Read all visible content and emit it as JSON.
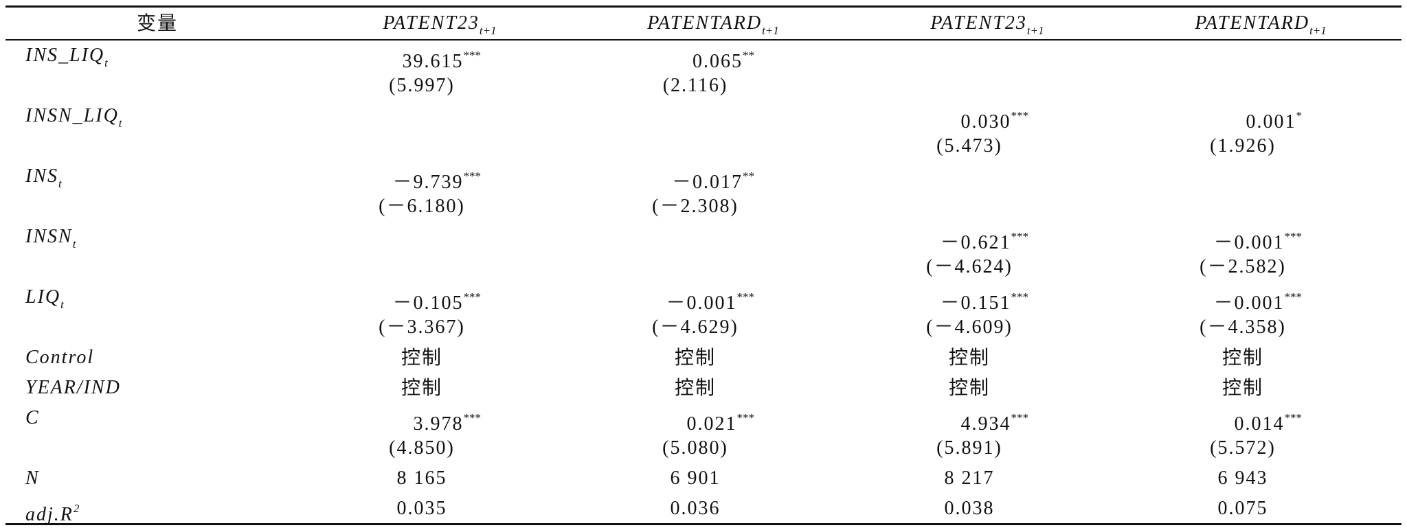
{
  "header": {
    "variable": "变量",
    "columns": [
      {
        "text": "PATENT23",
        "sub": "t+1"
      },
      {
        "text": "PATENTARD",
        "sub": "t+1"
      },
      {
        "text": "PATENT23",
        "sub": "t+1"
      },
      {
        "text": "PATENTARD",
        "sub": "t+1"
      }
    ]
  },
  "rows": [
    {
      "label": {
        "text": "INS_LIQ",
        "sub": "t"
      },
      "cells": [
        {
          "coef": "39.615",
          "stars": "***",
          "t": "(5.997)"
        },
        {
          "coef": "0.065",
          "stars": "**",
          "t": "(2.116)"
        },
        null,
        null
      ]
    },
    {
      "label": {
        "text": "INSN_LIQ",
        "sub": "t"
      },
      "cells": [
        null,
        null,
        {
          "coef": "0.030",
          "stars": "***",
          "t": "(5.473)"
        },
        {
          "coef": "0.001",
          "stars": "*",
          "t": "(1.926)"
        }
      ]
    },
    {
      "label": {
        "text": "INS",
        "sub": "t"
      },
      "cells": [
        {
          "coef": "－9.739",
          "stars": "***",
          "t": "(－6.180)"
        },
        {
          "coef": "－0.017",
          "stars": "**",
          "t": "(－2.308)"
        },
        null,
        null
      ]
    },
    {
      "label": {
        "text": "INSN",
        "sub": "t"
      },
      "cells": [
        null,
        null,
        {
          "coef": "－0.621",
          "stars": "***",
          "t": "(－4.624)"
        },
        {
          "coef": "－0.001",
          "stars": "***",
          "t": "(－2.582)"
        }
      ]
    },
    {
      "label": {
        "text": "LIQ",
        "sub": "t"
      },
      "cells": [
        {
          "coef": "－0.105",
          "stars": "***",
          "t": "(－3.367)"
        },
        {
          "coef": "－0.001",
          "stars": "***",
          "t": "(－4.629)"
        },
        {
          "coef": "－0.151",
          "stars": "***",
          "t": "(－4.609)"
        },
        {
          "coef": "－0.001",
          "stars": "***",
          "t": "(－4.358)"
        }
      ]
    },
    {
      "label": {
        "text": "Control"
      },
      "cells": [
        "控制",
        "控制",
        "控制",
        "控制"
      ]
    },
    {
      "label": {
        "text": "YEAR/IND"
      },
      "cells": [
        "控制",
        "控制",
        "控制",
        "控制"
      ]
    },
    {
      "label": {
        "text": "C"
      },
      "cells": [
        {
          "coef": "3.978",
          "stars": "***",
          "t": "(4.850)"
        },
        {
          "coef": "0.021",
          "stars": "***",
          "t": "(5.080)"
        },
        {
          "coef": "4.934",
          "stars": "***",
          "t": "(5.891)"
        },
        {
          "coef": "0.014",
          "stars": "***",
          "t": "(5.572)"
        }
      ]
    },
    {
      "label": {
        "text": "N"
      },
      "cells": [
        "8 165",
        "6 901",
        "8 217",
        "6 943"
      ]
    },
    {
      "label": {
        "text": "adj.R",
        "sup": "2"
      },
      "cells": [
        "0.035",
        "0.036",
        "0.038",
        "0.075"
      ]
    }
  ]
}
